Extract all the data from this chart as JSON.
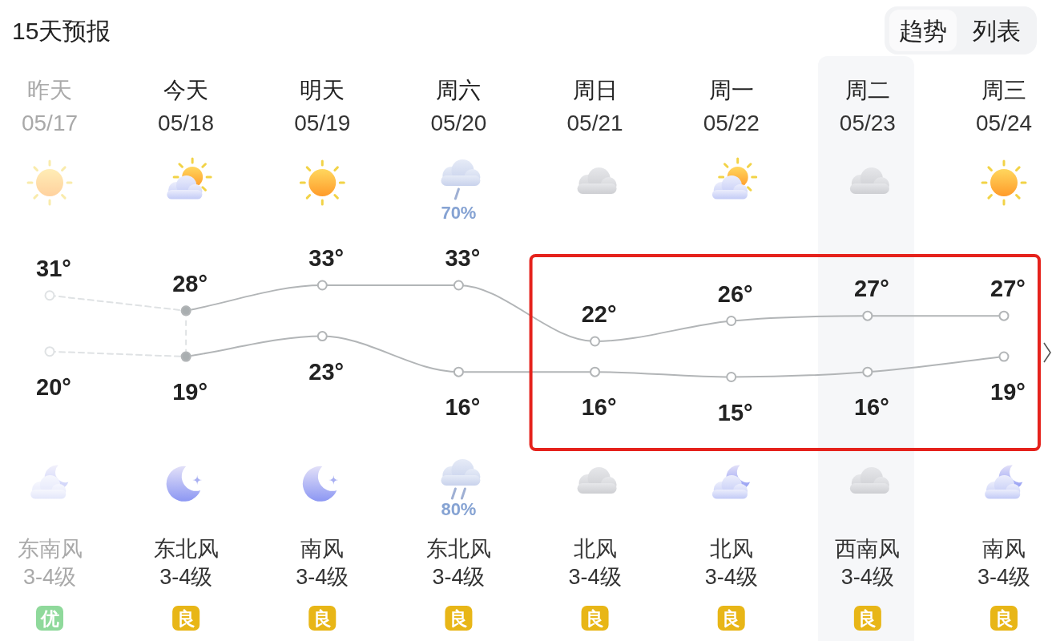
{
  "chart_data": {
    "type": "line",
    "title": "15天预报",
    "categories": [
      "昨天\n05/17",
      "今天\n05/18",
      "明天\n05/19",
      "周六\n05/20",
      "周日\n05/21",
      "周一\n05/22",
      "周二\n05/23",
      "周三\n05/24"
    ],
    "series": [
      {
        "color": "#dfe2e4",
        "line_style": "dashed",
        "values": [
          31,
          28,
          null,
          null,
          null,
          null,
          null,
          null
        ],
        "value_labels": [
          "31°",
          null,
          null,
          null,
          null,
          null,
          null,
          null
        ]
      },
      {
        "color": "#b2b5b7",
        "values": [
          null,
          28,
          33,
          33,
          22,
          26,
          27,
          27
        ],
        "colors": [
          null,
          "#a9aeb0",
          "#ffffff",
          "#ffffff",
          "#ffffff",
          "#ffffff",
          "#ffffff",
          "#ffffff"
        ],
        "value_labels": [
          null,
          "28°",
          "33°",
          "33°",
          "22°",
          "26°",
          "27°",
          "27°"
        ]
      },
      {
        "color": "#dfe2e4",
        "line_style": "dashed",
        "values": [
          20,
          19,
          null,
          null,
          null,
          null,
          null,
          null
        ],
        "value_labels": [
          "20°",
          null,
          null,
          null,
          null,
          null,
          null,
          null
        ]
      },
      {
        "color": "#b2b5b7",
        "values": [
          null,
          19,
          23,
          16,
          16,
          15,
          16,
          19
        ],
        "colors": [
          null,
          "#a9aeb0",
          "#ffffff",
          "#ffffff",
          "#ffffff",
          "#ffffff",
          "#ffffff",
          "#ffffff"
        ],
        "value_labels": [
          null,
          "19°",
          "23°",
          "16°",
          "16°",
          "15°",
          "16°",
          "19°"
        ]
      }
    ],
    "tick_labels": "x",
    "marker": "circle",
    "line_style": "solid",
    "ref_lines": [
      {
        "axis": "x",
        "value": "今天\n05/18",
        "color": "#dfe2e4",
        "line_style": "dashed"
      }
    ],
    "bands": [
      {
        "axis": "x",
        "from": "周二\n05/23",
        "to": "周二\n05/23",
        "color": "#f6f7f9"
      }
    ],
    "annotations": [
      "趋势",
      "列表",
      "70%",
      "80%",
      "东南风\n3-4级",
      "东北风\n3-4级",
      "南风\n3-4级",
      "东北风\n3-4级",
      "北风\n3-4级",
      "北风\n3-4级",
      "西南风\n3-4级",
      "南风\n3-4级",
      "优",
      "良",
      "良",
      "良",
      "良",
      "良",
      "良",
      "良"
    ]
  }
}
